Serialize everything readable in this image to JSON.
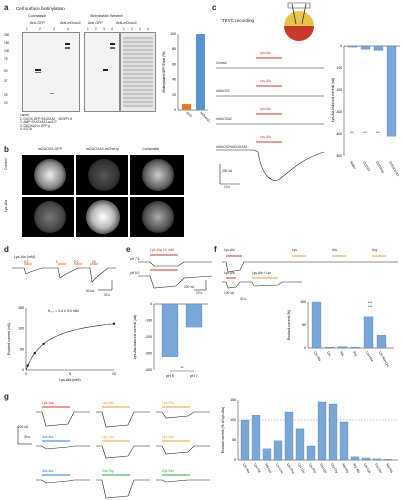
{
  "panel_a": {
    "label": "a",
    "title": "Cell surface biotinylation",
    "gel1_header": "Coomassie",
    "gel2_header": "Streptavidin Western",
    "sub_anti_gfp": "Anti-GFP",
    "sub_anti_mduox2": "Anti-mDuox2",
    "lanes": [
      "1",
      "2",
      "3",
      "4"
    ],
    "mw_kda": [
      "250",
      "150",
      "100",
      "75",
      "50",
      "37",
      "25",
      "20"
    ],
    "legend_label": "Lanes:",
    "legend_lines": [
      "1. DUOX-GFP+DUOXA2 · 4EGFR-H",
      "2. AMP+DUOXA2-LacZ-P",
      "3. DUOXA2 in GFP-p",
      "4. EGTA"
    ],
    "bar_ylabel": "Biotinylated GFP/Total (%)",
    "bar_categories": [
      "GFP",
      "mDuox2-GFP"
    ],
    "bar_values": [
      8,
      100
    ],
    "bar_yticks": [
      "0",
      "20",
      "40",
      "60",
      "80",
      "100"
    ]
  },
  "panel_b": {
    "label": "b",
    "col_headers": [
      "mDUOX2-GFP",
      "mDUOXA2-mCherry",
      "Composite"
    ],
    "row_labels": [
      "Control",
      "Lys-Ala"
    ]
  },
  "panel_c": {
    "label": "c",
    "title": "TEVC recording",
    "rows": [
      "Control",
      "mDUOX2",
      "mDUOXA2",
      "mDUOX2+mDUOXA2"
    ],
    "stim": "Lys-Ala",
    "scale_current": "200 nA",
    "scale_time": "10 s",
    "bar_ylabel": "Lys-Ala-induced current (nA)",
    "bar_categories": [
      "Water",
      "DUOX2",
      "DUOXA2",
      "DUOX2+A2"
    ],
    "bar_values": [
      -5,
      -15,
      -20,
      -410
    ],
    "sig": [
      "***",
      "***",
      "***"
    ]
  },
  "panel_d": {
    "label": "d",
    "stim": "Lys-Ala (mM)",
    "concentrations": [
      "0.2",
      "1",
      "2.0",
      "10"
    ],
    "scale_current": "50 nA",
    "scale_time": "30 s",
    "fit_label": "K₀.₅ = 2.4 ± 0.4 mM",
    "xlabel": "Lys-Ala (mM)",
    "ylabel": "Evoked current (nA)",
    "yticks": [
      "0",
      "50",
      "100",
      "150"
    ],
    "xticks": [
      "0",
      "5",
      "10"
    ]
  },
  "panel_e": {
    "label": "e",
    "stim": "Lys-Ala 10 mM",
    "row_labels": [
      "pH 7.5",
      "pH 5.0"
    ],
    "scale_current": "200 nA",
    "scale_time": "20 s",
    "bar_ylabel": "Lys-Ala-induced current (nA)",
    "bar_categories": [
      "pH 5",
      "pH 7"
    ],
    "bar_values": [
      -320,
      -140
    ],
    "sig": "**",
    "yticks": [
      "0",
      "-100",
      "-200",
      "-300",
      "-400"
    ]
  },
  "panel_f": {
    "label": "f",
    "stims_top": [
      "Lys-Ala",
      "Lys",
      "Ala",
      "Arg"
    ],
    "stims_bottom": [
      "Lys-Ala",
      "Lys-Ala + Lys"
    ],
    "scale_current": "100 nA",
    "scale_time": "30 s",
    "bar_ylabel": "Evoked current (%)",
    "bar_categories": [
      "Lys-Ala",
      "Lys",
      "Ala",
      "Arg",
      "Lys+Ala",
      "Lys-Ala+Lys"
    ],
    "bar_values": [
      100,
      2,
      3,
      2,
      68,
      28
    ],
    "sig": [
      "***",
      "***"
    ]
  },
  "panel_g": {
    "label": "g",
    "trace_labels": [
      "Lys-Ala",
      "Lys-Val",
      "Lys-Pro",
      "Ala-Ala",
      "Lys-Leu",
      "Lys-Glu",
      "Ala-Ala",
      "Gly-Gly",
      "Gly-Ser"
    ],
    "scale_current": "200 nA",
    "scale_time": "30 s",
    "bar_ylabel": "Evoked current (% of Lys-Ala)",
    "bar_categories": [
      "Lys-Ala",
      "Lys-Val",
      "Ala-Lys",
      "Lys-Leu",
      "Lys-Phe",
      "Lys-Glu",
      "Lys-Pro",
      "Gly-Lys",
      "Gly-Gly",
      "Ala-Gly",
      "Arg-Ala",
      "Lys-Lys",
      "Gly-Ser",
      "Ala-Ala"
    ],
    "bar_values": [
      100,
      112,
      28,
      48,
      120,
      78,
      35,
      145,
      140,
      95,
      8,
      5,
      3,
      2
    ],
    "reference_line": 100
  }
}
